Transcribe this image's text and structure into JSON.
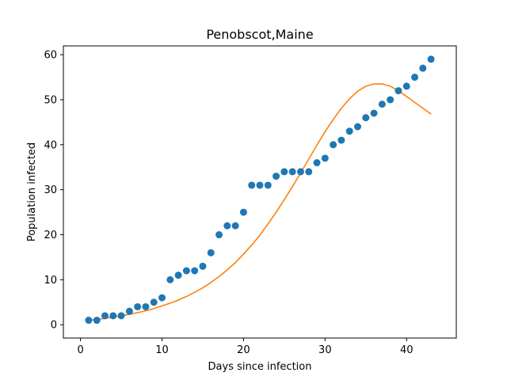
{
  "chart_data": {
    "type": "scatter",
    "title": "Penobscot,Maine",
    "xlabel": "Days since infection",
    "ylabel": "Population infected",
    "xlim": [
      -2.1,
      46.1
    ],
    "ylim": [
      -2.95,
      61.95
    ],
    "xticks": [
      0,
      10,
      20,
      30,
      40
    ],
    "yticks": [
      0,
      10,
      20,
      30,
      40,
      50,
      60
    ],
    "grid": false,
    "legend": "none",
    "series": [
      {
        "kind": "scatter",
        "color": "#1f77b4",
        "x": [
          1,
          2,
          3,
          4,
          5,
          6,
          7,
          8,
          9,
          10,
          11,
          12,
          13,
          14,
          15,
          16,
          17,
          18,
          19,
          20,
          21,
          22,
          23,
          24,
          25,
          26,
          27,
          28,
          29,
          30,
          31,
          32,
          33,
          34,
          35,
          36,
          37,
          38,
          39,
          40,
          41,
          42,
          43
        ],
        "y": [
          1,
          1,
          2,
          2,
          2,
          3,
          4,
          4,
          5,
          6,
          10,
          11,
          12,
          12,
          13,
          16,
          20,
          22,
          22,
          25,
          31,
          31,
          31,
          33,
          34,
          34,
          34,
          34,
          36,
          37,
          40,
          41,
          43,
          44,
          46,
          47,
          49,
          50,
          52,
          53,
          55,
          57,
          59
        ]
      },
      {
        "kind": "line",
        "color": "#ff7f0e",
        "x": [
          1,
          2,
          3,
          4,
          5,
          6,
          7,
          8,
          9,
          10,
          11,
          12,
          13,
          14,
          15,
          16,
          17,
          18,
          19,
          20,
          21,
          22,
          23,
          24,
          25,
          26,
          27,
          28,
          29,
          30,
          31,
          32,
          33,
          34,
          35,
          36,
          37,
          38,
          39,
          40,
          41,
          42,
          43
        ],
        "y": [
          1.0,
          1.2,
          1.4,
          1.7,
          2.0,
          2.3,
          2.7,
          3.1,
          3.6,
          4.2,
          4.8,
          5.5,
          6.3,
          7.2,
          8.2,
          9.4,
          10.7,
          12.2,
          13.8,
          15.7,
          17.7,
          19.9,
          22.4,
          25.0,
          27.8,
          30.7,
          33.7,
          36.8,
          39.9,
          42.9,
          45.6,
          48.1,
          50.2,
          51.9,
          53.0,
          53.5,
          53.5,
          53.0,
          52.0,
          50.7,
          49.4,
          48.1,
          46.8
        ]
      }
    ]
  }
}
